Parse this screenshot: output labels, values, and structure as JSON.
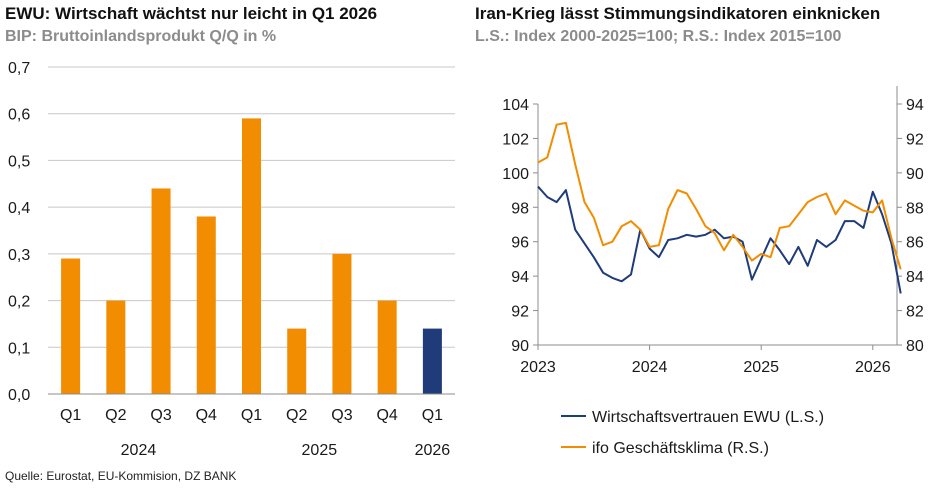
{
  "left_chart": {
    "title": "EWU: Wirtschaft wächtst nur leicht in Q1 2026",
    "subtitle": "BIP: Bruttoinlandsprodukt Q/Q in %"
  },
  "right_chart": {
    "title": "Iran-Krieg lässt Stimmungsindikatoren einknicken",
    "subtitle": "L.S.: Index 2000-2025=100; R.S.: Index 2015=100"
  },
  "source": "Quelle: Eurostat, EU-Kommision, DZ BANK",
  "colors": {
    "orange": "#f28c00",
    "navy": "#1f3b7a",
    "grid": "#c8c8c8"
  },
  "chart_data": [
    {
      "type": "bar",
      "categories": [
        "Q1",
        "Q2",
        "Q3",
        "Q4",
        "Q1",
        "Q2",
        "Q3",
        "Q4",
        "Q1"
      ],
      "year_groups": [
        {
          "label": "2024",
          "from": 0,
          "to": 3
        },
        {
          "label": "2025",
          "from": 4,
          "to": 7
        },
        {
          "label": "2026",
          "from": 8,
          "to": 8
        }
      ],
      "values": [
        0.29,
        0.2,
        0.44,
        0.38,
        0.59,
        0.14,
        0.3,
        0.2,
        0.14
      ],
      "bar_colors": [
        "#f28c00",
        "#f28c00",
        "#f28c00",
        "#f28c00",
        "#f28c00",
        "#f28c00",
        "#f28c00",
        "#f28c00",
        "#1f3b7a"
      ],
      "ylim": [
        0,
        0.7
      ],
      "yticks": [
        "0,0",
        "0,1",
        "0,2",
        "0,3",
        "0,4",
        "0,5",
        "0,6",
        "0,7"
      ],
      "grid": true
    },
    {
      "type": "line",
      "x_start": "2023-01",
      "x_ticks": [
        "2023",
        "2024",
        "2025",
        "2026"
      ],
      "ylim_left": [
        90,
        104
      ],
      "yticks_left": [
        "90",
        "92",
        "94",
        "96",
        "98",
        "100",
        "102",
        "104"
      ],
      "ylim_right": [
        80,
        94
      ],
      "yticks_right": [
        "80",
        "82",
        "84",
        "86",
        "88",
        "90",
        "92",
        "94"
      ],
      "legend_position": "bottom",
      "grid": false,
      "series": [
        {
          "name": "Wirtschaftsvertrauen EWU (L.S.)",
          "axis": "left",
          "color": "#1f3b7a",
          "values": [
            99.2,
            98.6,
            98.3,
            99.0,
            96.7,
            95.9,
            95.1,
            94.2,
            93.9,
            93.7,
            94.1,
            96.7,
            95.6,
            95.1,
            96.1,
            96.2,
            96.4,
            96.3,
            96.4,
            96.7,
            96.2,
            96.3,
            96.0,
            93.8,
            95.0,
            96.2,
            95.5,
            94.7,
            95.7,
            94.6,
            96.1,
            95.7,
            96.1,
            97.2,
            97.2,
            96.8,
            98.9,
            97.6,
            95.9,
            93.0
          ]
        },
        {
          "name": "ifo Geschäftsklima (R.S.)",
          "axis": "right",
          "color": "#f28c00",
          "values": [
            90.6,
            90.9,
            92.8,
            92.9,
            90.5,
            88.3,
            87.4,
            85.8,
            86.0,
            86.9,
            87.2,
            86.7,
            85.7,
            85.8,
            87.9,
            89.0,
            88.8,
            87.9,
            86.9,
            86.5,
            85.5,
            86.4,
            85.7,
            84.9,
            85.3,
            85.1,
            86.8,
            86.9,
            87.6,
            88.3,
            88.6,
            88.8,
            87.6,
            88.4,
            88.1,
            87.8,
            87.7,
            88.4,
            86.2,
            84.4
          ]
        }
      ]
    }
  ]
}
